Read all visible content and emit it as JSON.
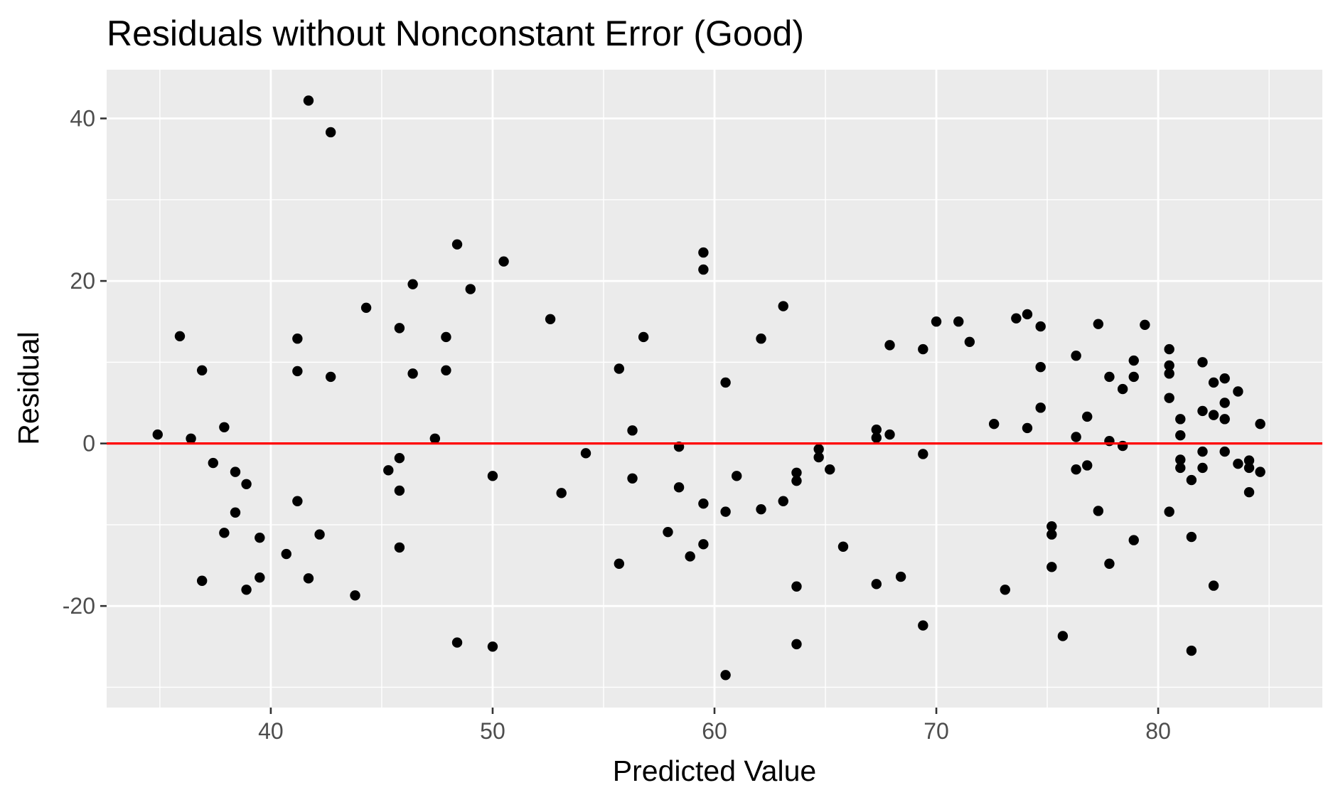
{
  "chart_data": {
    "type": "scatter",
    "title": "Residuals without Nonconstant Error (Good)",
    "xlabel": "Predicted Value",
    "ylabel": "Residual",
    "xlim": [
      32.6,
      87.4
    ],
    "ylim": [
      -32.5,
      46.0
    ],
    "x_ticks": [
      40,
      50,
      60,
      70,
      80
    ],
    "y_ticks": [
      -20,
      0,
      20,
      40
    ],
    "grid": true,
    "legend": "none",
    "colors": {
      "panel": "#ebebeb",
      "grid": "#ffffff",
      "points": "#000000",
      "reference_line": "#ff0000"
    },
    "reference_line": {
      "orientation": "horizontal",
      "y": 0
    },
    "points": [
      {
        "x": 34.9,
        "y": 1.1
      },
      {
        "x": 35.9,
        "y": 13.2
      },
      {
        "x": 36.4,
        "y": 0.6
      },
      {
        "x": 36.9,
        "y": 9.0
      },
      {
        "x": 36.9,
        "y": -16.9
      },
      {
        "x": 37.4,
        "y": -2.4
      },
      {
        "x": 37.9,
        "y": 2.0
      },
      {
        "x": 37.9,
        "y": -11.0
      },
      {
        "x": 38.4,
        "y": -3.5
      },
      {
        "x": 38.4,
        "y": -8.5
      },
      {
        "x": 38.9,
        "y": -5.0
      },
      {
        "x": 38.9,
        "y": -18.0
      },
      {
        "x": 39.5,
        "y": -11.6
      },
      {
        "x": 39.5,
        "y": -16.5
      },
      {
        "x": 40.7,
        "y": -13.6
      },
      {
        "x": 41.2,
        "y": 12.9
      },
      {
        "x": 41.2,
        "y": 8.9
      },
      {
        "x": 41.2,
        "y": -7.1
      },
      {
        "x": 41.7,
        "y": 42.2
      },
      {
        "x": 41.7,
        "y": -16.6
      },
      {
        "x": 42.2,
        "y": -11.2
      },
      {
        "x": 42.7,
        "y": 38.3
      },
      {
        "x": 42.7,
        "y": 8.2
      },
      {
        "x": 43.8,
        "y": -18.7
      },
      {
        "x": 44.3,
        "y": 16.7
      },
      {
        "x": 45.3,
        "y": -3.3
      },
      {
        "x": 45.8,
        "y": 14.2
      },
      {
        "x": 45.8,
        "y": -1.8
      },
      {
        "x": 45.8,
        "y": -5.8
      },
      {
        "x": 45.8,
        "y": -12.8
      },
      {
        "x": 46.4,
        "y": 19.6
      },
      {
        "x": 46.4,
        "y": 8.6
      },
      {
        "x": 47.4,
        "y": 0.6
      },
      {
        "x": 47.9,
        "y": 13.1
      },
      {
        "x": 47.9,
        "y": 9.0
      },
      {
        "x": 48.4,
        "y": 24.5
      },
      {
        "x": 48.4,
        "y": -24.5
      },
      {
        "x": 49.0,
        "y": 19.0
      },
      {
        "x": 50.0,
        "y": -4.0
      },
      {
        "x": 50.0,
        "y": -25.0
      },
      {
        "x": 50.5,
        "y": 22.4
      },
      {
        "x": 52.6,
        "y": 15.3
      },
      {
        "x": 53.1,
        "y": -6.1
      },
      {
        "x": 54.2,
        "y": -1.2
      },
      {
        "x": 55.7,
        "y": 9.2
      },
      {
        "x": 55.7,
        "y": -14.8
      },
      {
        "x": 56.3,
        "y": 1.6
      },
      {
        "x": 56.3,
        "y": -4.3
      },
      {
        "x": 56.8,
        "y": 13.1
      },
      {
        "x": 57.9,
        "y": -10.9
      },
      {
        "x": 58.4,
        "y": -0.4
      },
      {
        "x": 58.4,
        "y": -5.4
      },
      {
        "x": 58.9,
        "y": -13.9
      },
      {
        "x": 59.5,
        "y": 23.5
      },
      {
        "x": 59.5,
        "y": 21.4
      },
      {
        "x": 59.5,
        "y": -7.4
      },
      {
        "x": 59.5,
        "y": -12.4
      },
      {
        "x": 60.5,
        "y": 7.5
      },
      {
        "x": 60.5,
        "y": -8.4
      },
      {
        "x": 60.5,
        "y": -28.5
      },
      {
        "x": 61.0,
        "y": -4.0
      },
      {
        "x": 62.1,
        "y": 12.9
      },
      {
        "x": 62.1,
        "y": -8.1
      },
      {
        "x": 63.1,
        "y": 16.9
      },
      {
        "x": 63.1,
        "y": -7.1
      },
      {
        "x": 63.7,
        "y": -3.6
      },
      {
        "x": 63.7,
        "y": -4.6
      },
      {
        "x": 63.7,
        "y": -17.6
      },
      {
        "x": 63.7,
        "y": -24.7
      },
      {
        "x": 64.7,
        "y": -0.7
      },
      {
        "x": 64.7,
        "y": -1.7
      },
      {
        "x": 65.2,
        "y": -3.2
      },
      {
        "x": 65.8,
        "y": -12.7
      },
      {
        "x": 67.3,
        "y": 1.7
      },
      {
        "x": 67.3,
        "y": 0.7
      },
      {
        "x": 67.3,
        "y": -17.3
      },
      {
        "x": 67.9,
        "y": 12.1
      },
      {
        "x": 67.9,
        "y": 1.1
      },
      {
        "x": 68.4,
        "y": -16.4
      },
      {
        "x": 69.4,
        "y": 11.6
      },
      {
        "x": 69.4,
        "y": -1.3
      },
      {
        "x": 69.4,
        "y": -22.4
      },
      {
        "x": 70.0,
        "y": 15.0
      },
      {
        "x": 71.0,
        "y": 15.0
      },
      {
        "x": 71.5,
        "y": 12.5
      },
      {
        "x": 72.6,
        "y": 2.4
      },
      {
        "x": 73.1,
        "y": -18.0
      },
      {
        "x": 73.6,
        "y": 15.4
      },
      {
        "x": 74.1,
        "y": 15.9
      },
      {
        "x": 74.1,
        "y": 1.9
      },
      {
        "x": 74.7,
        "y": 14.4
      },
      {
        "x": 74.7,
        "y": 9.4
      },
      {
        "x": 74.7,
        "y": 4.4
      },
      {
        "x": 75.2,
        "y": -10.2
      },
      {
        "x": 75.2,
        "y": -11.2
      },
      {
        "x": 75.2,
        "y": -15.2
      },
      {
        "x": 75.7,
        "y": -23.7
      },
      {
        "x": 76.3,
        "y": 10.8
      },
      {
        "x": 76.3,
        "y": 0.8
      },
      {
        "x": 76.3,
        "y": -3.2
      },
      {
        "x": 76.8,
        "y": 3.3
      },
      {
        "x": 76.8,
        "y": -2.7
      },
      {
        "x": 77.3,
        "y": 14.7
      },
      {
        "x": 77.3,
        "y": -8.3
      },
      {
        "x": 77.8,
        "y": 8.2
      },
      {
        "x": 77.8,
        "y": 0.3
      },
      {
        "x": 77.8,
        "y": -14.8
      },
      {
        "x": 78.4,
        "y": 6.7
      },
      {
        "x": 78.4,
        "y": -0.3
      },
      {
        "x": 78.9,
        "y": 10.2
      },
      {
        "x": 78.9,
        "y": 8.2
      },
      {
        "x": 78.9,
        "y": -11.9
      },
      {
        "x": 79.4,
        "y": 14.6
      },
      {
        "x": 80.5,
        "y": 11.6
      },
      {
        "x": 80.5,
        "y": 9.6
      },
      {
        "x": 80.5,
        "y": 8.6
      },
      {
        "x": 80.5,
        "y": 5.6
      },
      {
        "x": 80.5,
        "y": -8.4
      },
      {
        "x": 81.0,
        "y": 3.0
      },
      {
        "x": 81.0,
        "y": 1.0
      },
      {
        "x": 81.0,
        "y": -2.0
      },
      {
        "x": 81.0,
        "y": -3.0
      },
      {
        "x": 81.5,
        "y": -4.5
      },
      {
        "x": 81.5,
        "y": -11.5
      },
      {
        "x": 81.5,
        "y": -25.5
      },
      {
        "x": 82.0,
        "y": 10.0
      },
      {
        "x": 82.0,
        "y": 4.0
      },
      {
        "x": 82.0,
        "y": -1.0
      },
      {
        "x": 82.0,
        "y": -3.0
      },
      {
        "x": 82.5,
        "y": 7.5
      },
      {
        "x": 82.5,
        "y": 3.5
      },
      {
        "x": 82.5,
        "y": -17.5
      },
      {
        "x": 83.0,
        "y": 8.0
      },
      {
        "x": 83.0,
        "y": 5.0
      },
      {
        "x": 83.0,
        "y": 3.0
      },
      {
        "x": 83.0,
        "y": -1.0
      },
      {
        "x": 83.6,
        "y": 6.4
      },
      {
        "x": 83.6,
        "y": -2.5
      },
      {
        "x": 84.1,
        "y": -2.1
      },
      {
        "x": 84.1,
        "y": -3.0
      },
      {
        "x": 84.1,
        "y": -6.0
      },
      {
        "x": 84.6,
        "y": 2.4
      },
      {
        "x": 84.6,
        "y": -3.5
      }
    ]
  }
}
